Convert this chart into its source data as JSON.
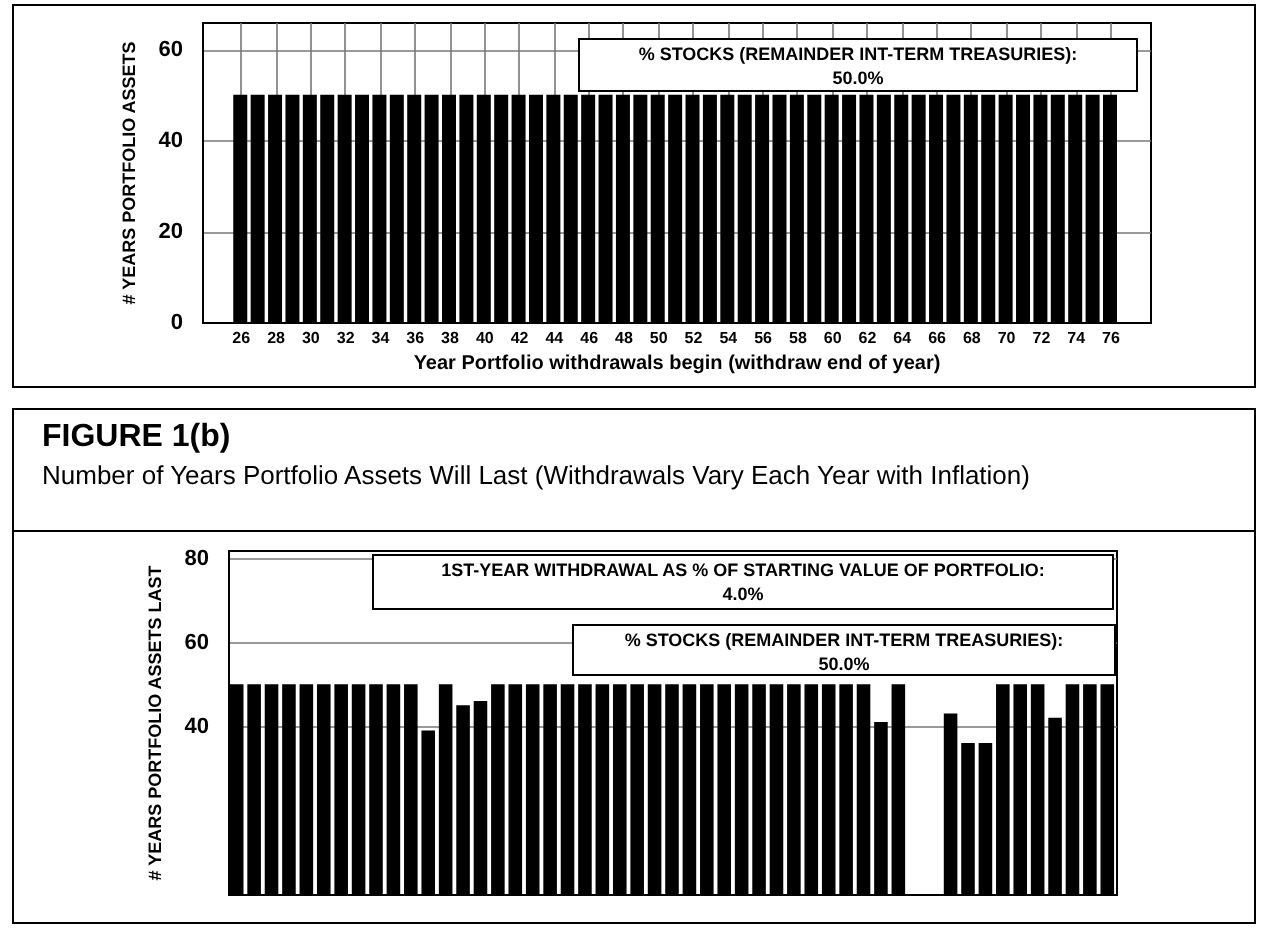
{
  "chart_data": [
    {
      "type": "bar",
      "ylabel": "# YEARS PORTFOLIO ASSETS",
      "xlabel": "Year Portfolio withdrawals begin (withdraw end of year)",
      "annotations": [
        "% STOCKS (REMAINDER INT-TERM TREASURIES):\n50.0%"
      ],
      "x": [
        26,
        27,
        28,
        29,
        30,
        31,
        32,
        33,
        34,
        35,
        36,
        37,
        38,
        39,
        40,
        41,
        42,
        43,
        44,
        45,
        46,
        47,
        48,
        49,
        50,
        51,
        52,
        53,
        54,
        55,
        56,
        57,
        58,
        59,
        60,
        61,
        62,
        63,
        64,
        65,
        66,
        67,
        68,
        69,
        70,
        71,
        72,
        73,
        74,
        75,
        76
      ],
      "values": [
        50,
        50,
        50,
        50,
        50,
        50,
        50,
        50,
        50,
        50,
        50,
        50,
        50,
        50,
        50,
        50,
        50,
        50,
        50,
        50,
        50,
        50,
        50,
        50,
        50,
        50,
        50,
        50,
        50,
        50,
        50,
        50,
        50,
        50,
        50,
        50,
        50,
        50,
        50,
        50,
        50,
        50,
        50,
        50,
        50,
        50,
        50,
        50,
        50,
        50,
        50
      ],
      "color": "#000000",
      "xlim": [
        23.8,
        78.3
      ],
      "xticks": [
        26,
        28,
        30,
        32,
        34,
        36,
        38,
        40,
        42,
        44,
        46,
        48,
        50,
        52,
        54,
        56,
        58,
        60,
        62,
        64,
        66,
        68,
        70,
        72,
        74,
        76
      ],
      "ylim": [
        0,
        66
      ],
      "yticks": [
        0,
        20,
        40,
        60
      ],
      "grid": true
    },
    {
      "type": "bar",
      "title": "FIGURE 1(b)",
      "subtitle": "Number of Years Portfolio Assets Will Last (Withdrawals Vary Each Year with Inflation)",
      "ylabel": "# YEARS PORTFOLIO ASSETS LAST",
      "annotations": [
        "1ST-YEAR WITHDRAWAL AS % OF STARTING VALUE OF PORTFOLIO:\n4.0%",
        "% STOCKS (REMAINDER INT-TERM TREASURIES):\n50.0%"
      ],
      "categories": [
        null,
        null,
        null,
        null,
        null,
        null,
        null,
        null,
        null,
        null,
        null,
        null,
        null,
        null,
        null,
        null,
        null,
        null,
        null,
        null,
        null,
        null,
        null,
        null,
        null,
        null,
        null,
        null,
        null,
        null,
        null,
        null,
        null,
        null,
        null,
        null,
        null,
        null,
        null,
        null,
        null,
        null,
        null,
        null,
        null,
        null,
        null,
        null,
        null,
        null,
        null
      ],
      "values": [
        50,
        50,
        50,
        50,
        50,
        50,
        50,
        50,
        50,
        50,
        50,
        39,
        50,
        45,
        46,
        50,
        50,
        50,
        50,
        50,
        50,
        50,
        50,
        50,
        50,
        50,
        50,
        50,
        50,
        50,
        50,
        50,
        50,
        50,
        50,
        50,
        50,
        41,
        50,
        null,
        null,
        43,
        36,
        36,
        50,
        50,
        50,
        42,
        50,
        50,
        50
      ],
      "color": "#000000",
      "ylim": [
        0,
        82
      ],
      "yticks": [
        40,
        60,
        80
      ],
      "grid": "y"
    }
  ]
}
